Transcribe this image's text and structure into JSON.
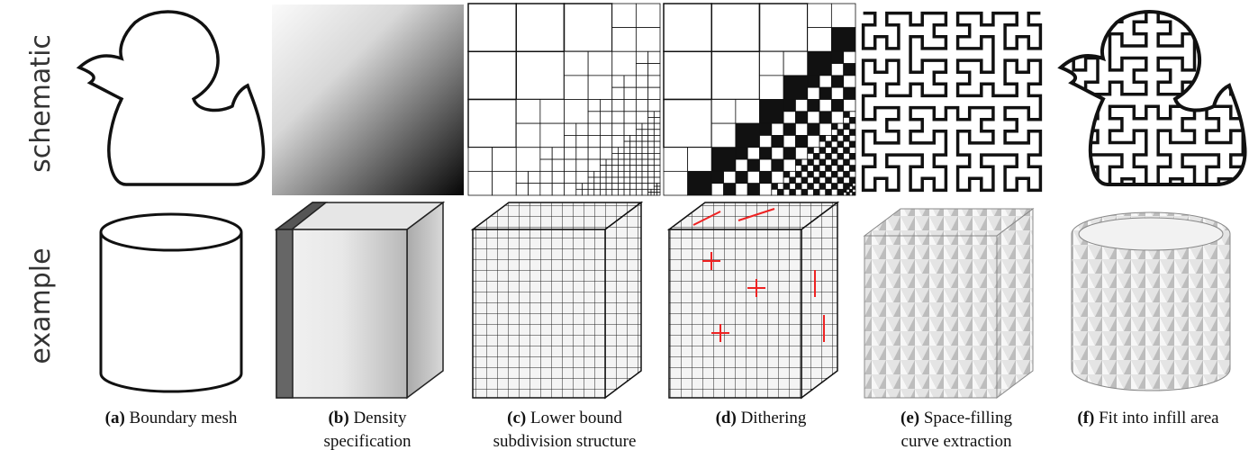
{
  "rows": [
    "schematic",
    "example"
  ],
  "panels": [
    {
      "label": "(a)",
      "caption": [
        "Boundary mesh"
      ]
    },
    {
      "label": "(b)",
      "caption": [
        "Density",
        "specification"
      ]
    },
    {
      "label": "(c)",
      "caption": [
        "Lower bound",
        "subdivision structure"
      ]
    },
    {
      "label": "(d)",
      "caption": [
        "Dithering"
      ]
    },
    {
      "label": "(e)",
      "caption": [
        "Space-filling",
        "curve extraction"
      ]
    },
    {
      "label": "(f)",
      "caption": [
        "Fit into infill area"
      ]
    }
  ]
}
